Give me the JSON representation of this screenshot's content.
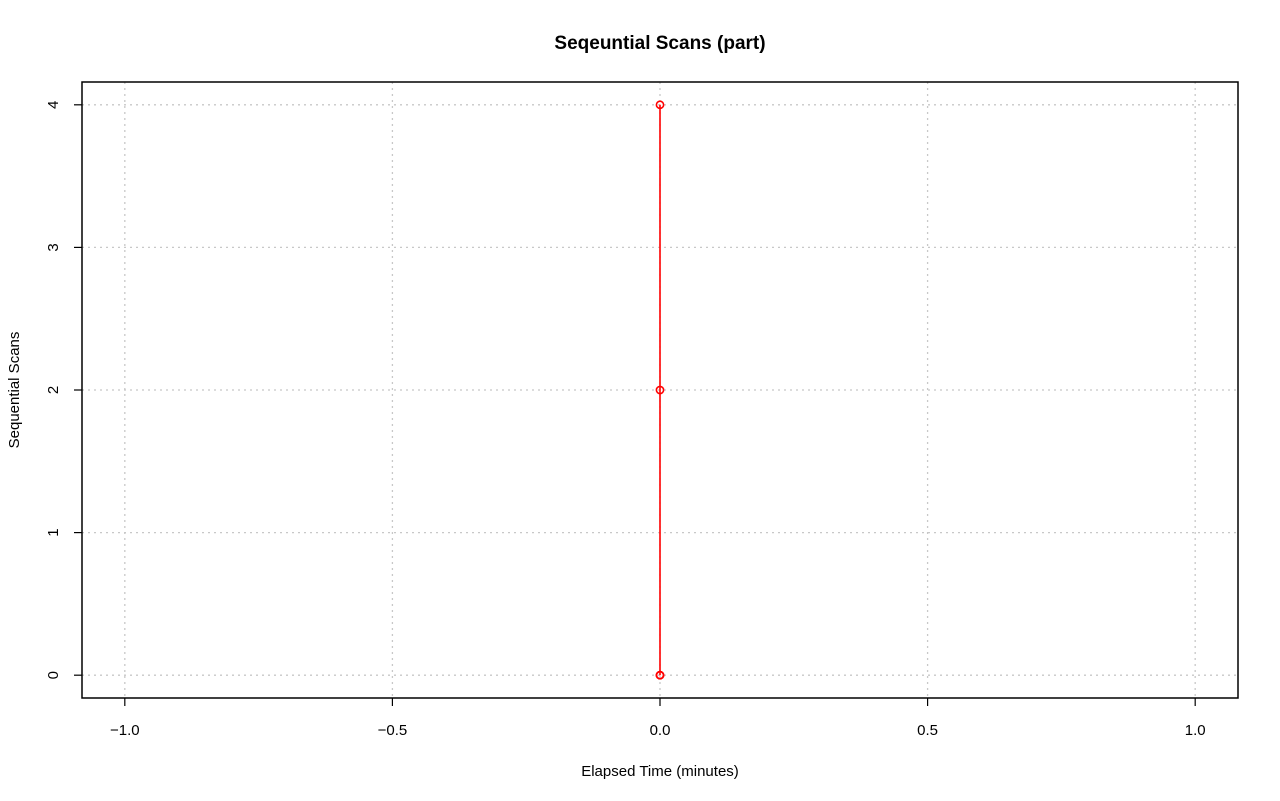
{
  "chart_data": {
    "type": "line",
    "title": "Seqeuntial Scans (part)",
    "xlabel": "Elapsed Time (minutes)",
    "ylabel": "Sequential Scans",
    "xlim": [
      -1.08,
      1.08
    ],
    "ylim": [
      -0.16,
      4.16
    ],
    "x_ticks": [
      -1.0,
      -0.5,
      0.0,
      0.5,
      1.0
    ],
    "x_tick_labels": [
      "−1.0",
      "−0.5",
      "0.0",
      "0.5",
      "1.0"
    ],
    "y_ticks": [
      0,
      1,
      2,
      3,
      4
    ],
    "y_tick_labels": [
      "0",
      "1",
      "2",
      "3",
      "4"
    ],
    "grid": true,
    "legend": "none",
    "series": [
      {
        "color": "#ff0000",
        "line_style": "dashed",
        "marker": "open-circle",
        "x": [
          0.0,
          0.0,
          0.0,
          0.0,
          0.0
        ],
        "y": [
          0,
          0,
          2,
          4,
          0
        ]
      }
    ]
  }
}
